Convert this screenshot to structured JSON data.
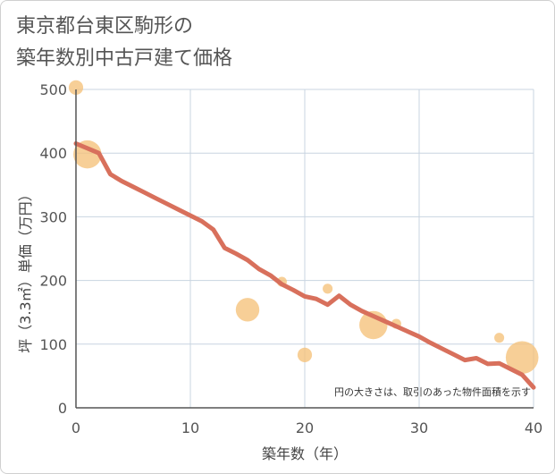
{
  "title_lines": [
    "東京都台東区駒形の",
    "築年数別中古戸建て価格"
  ],
  "chart_data": {
    "type": "scatter",
    "title": "東京都台東区駒形の築年数別中古戸建て価格",
    "xlabel": "築年数（年）",
    "ylabel": "坪（3.3㎡）単価（万円）",
    "xlim": [
      0,
      40
    ],
    "ylim": [
      0,
      500
    ],
    "xticks": [
      0,
      10,
      20,
      30,
      40
    ],
    "yticks": [
      0,
      100,
      200,
      300,
      400,
      500
    ],
    "grid": true,
    "annotation": "円の大きさは、取引のあった物件面積を示す",
    "colors": {
      "trend": "#d8705c",
      "bubble": "#f5c27a",
      "grid": "#c8d4e0",
      "axis": "#555555"
    },
    "scatter": [
      {
        "x": 0,
        "y": 503,
        "size": 2
      },
      {
        "x": 1,
        "y": 398,
        "size": 5
      },
      {
        "x": 15,
        "y": 154,
        "size": 4
      },
      {
        "x": 18,
        "y": 198,
        "size": 1
      },
      {
        "x": 20,
        "y": 83,
        "size": 2
      },
      {
        "x": 22,
        "y": 187,
        "size": 1
      },
      {
        "x": 26,
        "y": 130,
        "size": 5
      },
      {
        "x": 28,
        "y": 132,
        "size": 1
      },
      {
        "x": 37,
        "y": 110,
        "size": 1
      },
      {
        "x": 39,
        "y": 79,
        "size": 6
      }
    ],
    "trend": {
      "x": [
        0,
        2,
        3,
        4,
        5,
        6,
        7,
        8,
        9,
        10,
        11,
        12,
        13,
        14,
        15,
        16,
        17,
        18,
        19,
        20,
        21,
        22,
        23,
        24,
        25,
        26,
        27,
        28,
        29,
        30,
        31,
        32,
        33,
        34,
        35,
        36,
        37,
        38,
        39,
        40
      ],
      "y": [
        415,
        400,
        367,
        356,
        347,
        338,
        329,
        320,
        311,
        302,
        293,
        280,
        251,
        242,
        232,
        218,
        208,
        194,
        185,
        175,
        171,
        162,
        176,
        162,
        152,
        144,
        136,
        128,
        120,
        112,
        102,
        93,
        84,
        75,
        78,
        69,
        70,
        61,
        52,
        32
      ]
    }
  }
}
